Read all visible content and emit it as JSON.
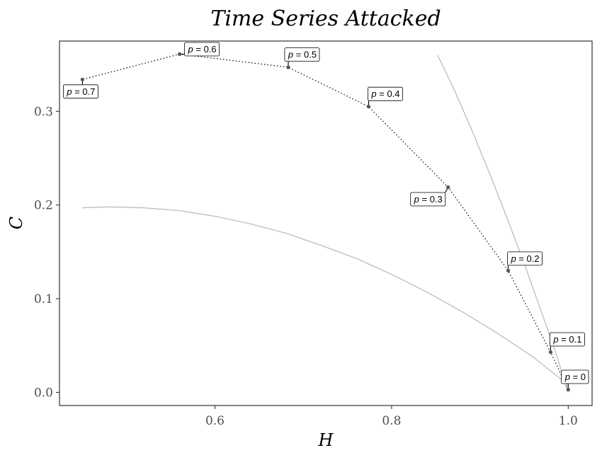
{
  "chart_data": {
    "type": "line",
    "title": "Time Series Attacked",
    "xlabel": "H",
    "ylabel": "C",
    "xlim": [
      0.424,
      1.027
    ],
    "ylim": [
      -0.014,
      0.375
    ],
    "xticks": [
      0.6,
      0.8,
      1.0
    ],
    "xtick_labels": [
      "0.6",
      "0.8",
      "1.0"
    ],
    "yticks": [
      0.0,
      0.1,
      0.2,
      0.3
    ],
    "ytick_labels": [
      "0.0",
      "0.1",
      "0.2",
      "0.3"
    ],
    "grid": false,
    "colors": {
      "series": "#000000",
      "bound": "#bdbdbd",
      "point": "#555555"
    },
    "series": [
      {
        "points": [
          {
            "p_label": "0",
            "x": 1.0,
            "y": 0.003
          },
          {
            "p_label": "0.1",
            "x": 0.98,
            "y": 0.043
          },
          {
            "p_label": "0.2",
            "x": 0.932,
            "y": 0.13
          },
          {
            "p_label": "0.3",
            "x": 0.864,
            "y": 0.219
          },
          {
            "p_label": "0.4",
            "x": 0.774,
            "y": 0.305
          },
          {
            "p_label": "0.5",
            "x": 0.683,
            "y": 0.347
          },
          {
            "p_label": "0.6",
            "x": 0.56,
            "y": 0.361
          },
          {
            "p_label": "0.7",
            "x": 0.45,
            "y": 0.334
          }
        ]
      }
    ],
    "bounds": [
      {
        "kind": "lower",
        "x": [
          0.45,
          0.48,
          0.52,
          0.56,
          0.6,
          0.64,
          0.68,
          0.72,
          0.76,
          0.8,
          0.84,
          0.88,
          0.92,
          0.96,
          1.0
        ],
        "y": [
          0.197,
          0.198,
          0.197,
          0.194,
          0.188,
          0.18,
          0.17,
          0.157,
          0.143,
          0.126,
          0.107,
          0.086,
          0.063,
          0.038,
          0.008
        ]
      },
      {
        "kind": "upper",
        "x": [
          0.852,
          0.87,
          0.89,
          0.91,
          0.93,
          0.95,
          0.97,
          0.985,
          1.0
        ],
        "y": [
          0.36,
          0.325,
          0.282,
          0.236,
          0.188,
          0.138,
          0.085,
          0.045,
          0.0
        ]
      }
    ]
  }
}
